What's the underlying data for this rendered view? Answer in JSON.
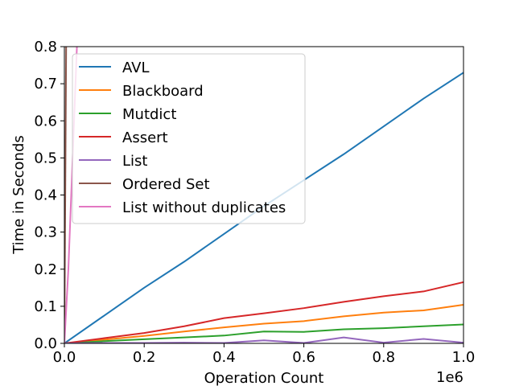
{
  "chart_data": {
    "type": "line",
    "title": "",
    "xlabel": "Operation Count",
    "ylabel": "Time in Seconds",
    "x_offset_label": "1e6",
    "x_scale": 1000000,
    "xlim": [
      0,
      1000000
    ],
    "ylim": [
      0,
      0.8
    ],
    "x_ticks": [
      0,
      200000,
      400000,
      600000,
      800000,
      1000000
    ],
    "x_tick_labels": [
      "0.0",
      "0.2",
      "0.4",
      "0.6",
      "0.8",
      "1.0"
    ],
    "y_ticks": [
      0,
      0.1,
      0.2,
      0.3,
      0.4,
      0.5,
      0.6,
      0.7,
      0.8
    ],
    "y_tick_labels": [
      "0.0",
      "0.1",
      "0.2",
      "0.3",
      "0.4",
      "0.5",
      "0.6",
      "0.7",
      "0.8"
    ],
    "grid": false,
    "legend_position": "upper-left",
    "series": [
      {
        "name": "AVL",
        "color": "#1f77b4",
        "x": [
          0,
          100000,
          200000,
          300000,
          400000,
          500000,
          600000,
          700000,
          800000,
          900000,
          1000000
        ],
        "y": [
          0,
          0.075,
          0.15,
          0.22,
          0.295,
          0.37,
          0.44,
          0.51,
          0.585,
          0.66,
          0.73
        ]
      },
      {
        "name": "Blackboard",
        "color": "#ff7f0e",
        "x": [
          0,
          100000,
          200000,
          300000,
          400000,
          500000,
          600000,
          700000,
          800000,
          900000,
          1000000
        ],
        "y": [
          0,
          0.01,
          0.02,
          0.032,
          0.043,
          0.053,
          0.06,
          0.073,
          0.083,
          0.089,
          0.104
        ]
      },
      {
        "name": "Mutdict",
        "color": "#2ca02c",
        "x": [
          0,
          100000,
          200000,
          300000,
          400000,
          500000,
          600000,
          700000,
          800000,
          900000,
          1000000
        ],
        "y": [
          0,
          0.006,
          0.011,
          0.016,
          0.021,
          0.032,
          0.031,
          0.038,
          0.041,
          0.046,
          0.051
        ]
      },
      {
        "name": "Assert",
        "color": "#d62728",
        "x": [
          0,
          100000,
          200000,
          300000,
          400000,
          500000,
          600000,
          700000,
          800000,
          900000,
          1000000
        ],
        "y": [
          0,
          0.014,
          0.028,
          0.046,
          0.068,
          0.081,
          0.095,
          0.112,
          0.127,
          0.14,
          0.165
        ]
      },
      {
        "name": "List",
        "color": "#9467bd",
        "x": [
          0,
          100000,
          200000,
          300000,
          400000,
          500000,
          600000,
          700000,
          800000,
          900000,
          1000000
        ],
        "y": [
          0,
          0.001,
          0.001,
          0.002,
          0.001,
          0.008,
          0.001,
          0.016,
          0.002,
          0.012,
          0.002
        ]
      },
      {
        "name": "Ordered Set",
        "color": "#8c564b",
        "x": [
          0,
          5000
        ],
        "y": [
          0,
          0.9
        ]
      },
      {
        "name": "List without duplicates",
        "color": "#e377c2",
        "x": [
          0,
          10000,
          35000
        ],
        "y": [
          0,
          0.2,
          0.9
        ]
      }
    ]
  }
}
